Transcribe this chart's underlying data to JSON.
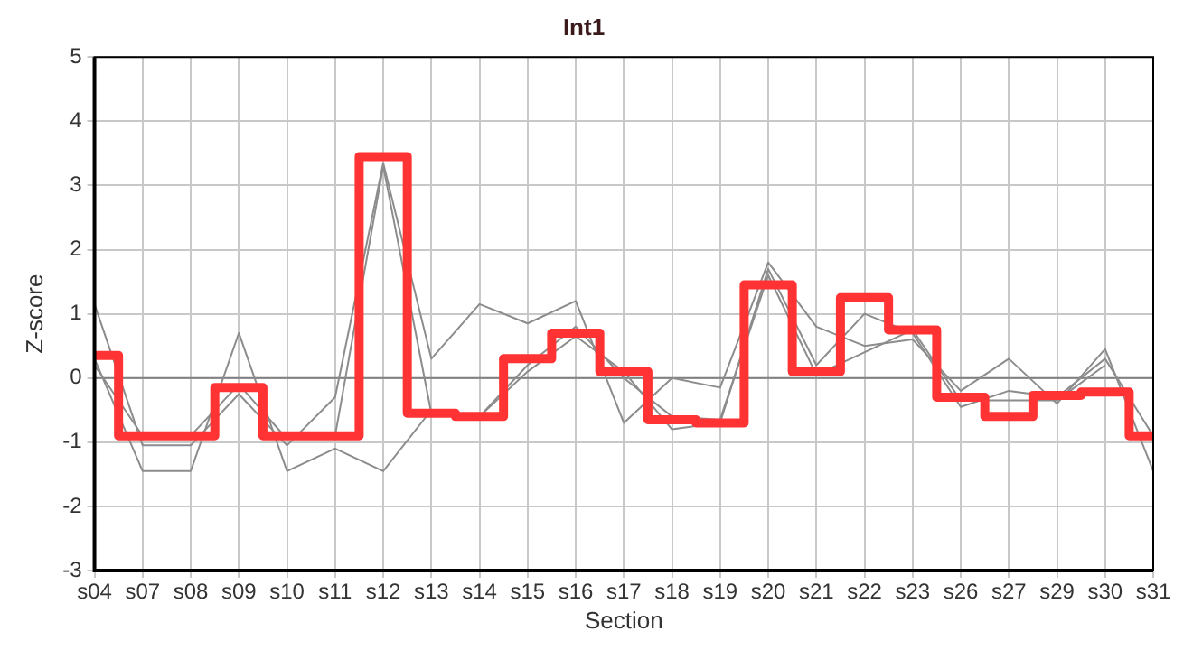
{
  "chart_data": {
    "type": "line",
    "title": "Int1",
    "xlabel": "Section",
    "ylabel": "Z-score",
    "categories": [
      "s04",
      "s07",
      "s08",
      "s09",
      "s10",
      "s11",
      "s12",
      "s13",
      "s14",
      "s15",
      "s16",
      "s17",
      "s18",
      "s19",
      "s20",
      "s21",
      "s22",
      "s23",
      "s26",
      "s27",
      "s29",
      "s30",
      "s31"
    ],
    "series": [
      {
        "type": "line",
        "color": "#8c8c8c",
        "values": [
          1.15,
          -1.05,
          -1.05,
          -0.25,
          -1.05,
          -0.3,
          3.35,
          0.3,
          1.15,
          0.85,
          1.2,
          -0.7,
          0.0,
          -0.15,
          1.8,
          0.8,
          0.5,
          0.6,
          -0.2,
          0.3,
          -0.4,
          0.45,
          -1.45
        ]
      },
      {
        "type": "line",
        "color": "#8c8c8c",
        "values": [
          0.3,
          -1.45,
          -1.45,
          0.7,
          -1.45,
          -1.1,
          -1.45,
          -0.5,
          -0.6,
          0.1,
          0.65,
          0.1,
          -0.8,
          -0.7,
          1.7,
          0.2,
          1.0,
          0.7,
          -0.45,
          -0.2,
          -0.3,
          0.3,
          -0.9
        ]
      },
      {
        "type": "line",
        "color": "#8c8c8c",
        "values": [
          0.2,
          -0.9,
          -0.9,
          -0.1,
          -0.95,
          -0.9,
          3.3,
          -0.55,
          -0.6,
          0.2,
          0.8,
          0.0,
          -0.6,
          -0.65,
          1.6,
          0.05,
          null,
          0.75,
          -0.35,
          null,
          -0.35,
          0.2,
          null
        ]
      },
      {
        "type": "step",
        "color": "#ff3333",
        "values": [
          0.35,
          -0.9,
          -0.9,
          -0.15,
          -0.9,
          -0.9,
          3.45,
          -0.55,
          -0.6,
          0.3,
          0.7,
          0.1,
          -0.65,
          -0.7,
          1.45,
          0.1,
          1.25,
          0.75,
          -0.3,
          -0.6,
          -0.27,
          -0.22,
          -0.9
        ]
      }
    ],
    "ylim": [
      -3,
      5
    ],
    "yticks": [
      -3,
      -2,
      -1,
      0,
      1,
      2,
      3,
      4,
      5
    ],
    "ref_lines": [
      {
        "axis": "y",
        "value": 0,
        "color": "#808080"
      }
    ],
    "grid": true,
    "legend": false
  }
}
